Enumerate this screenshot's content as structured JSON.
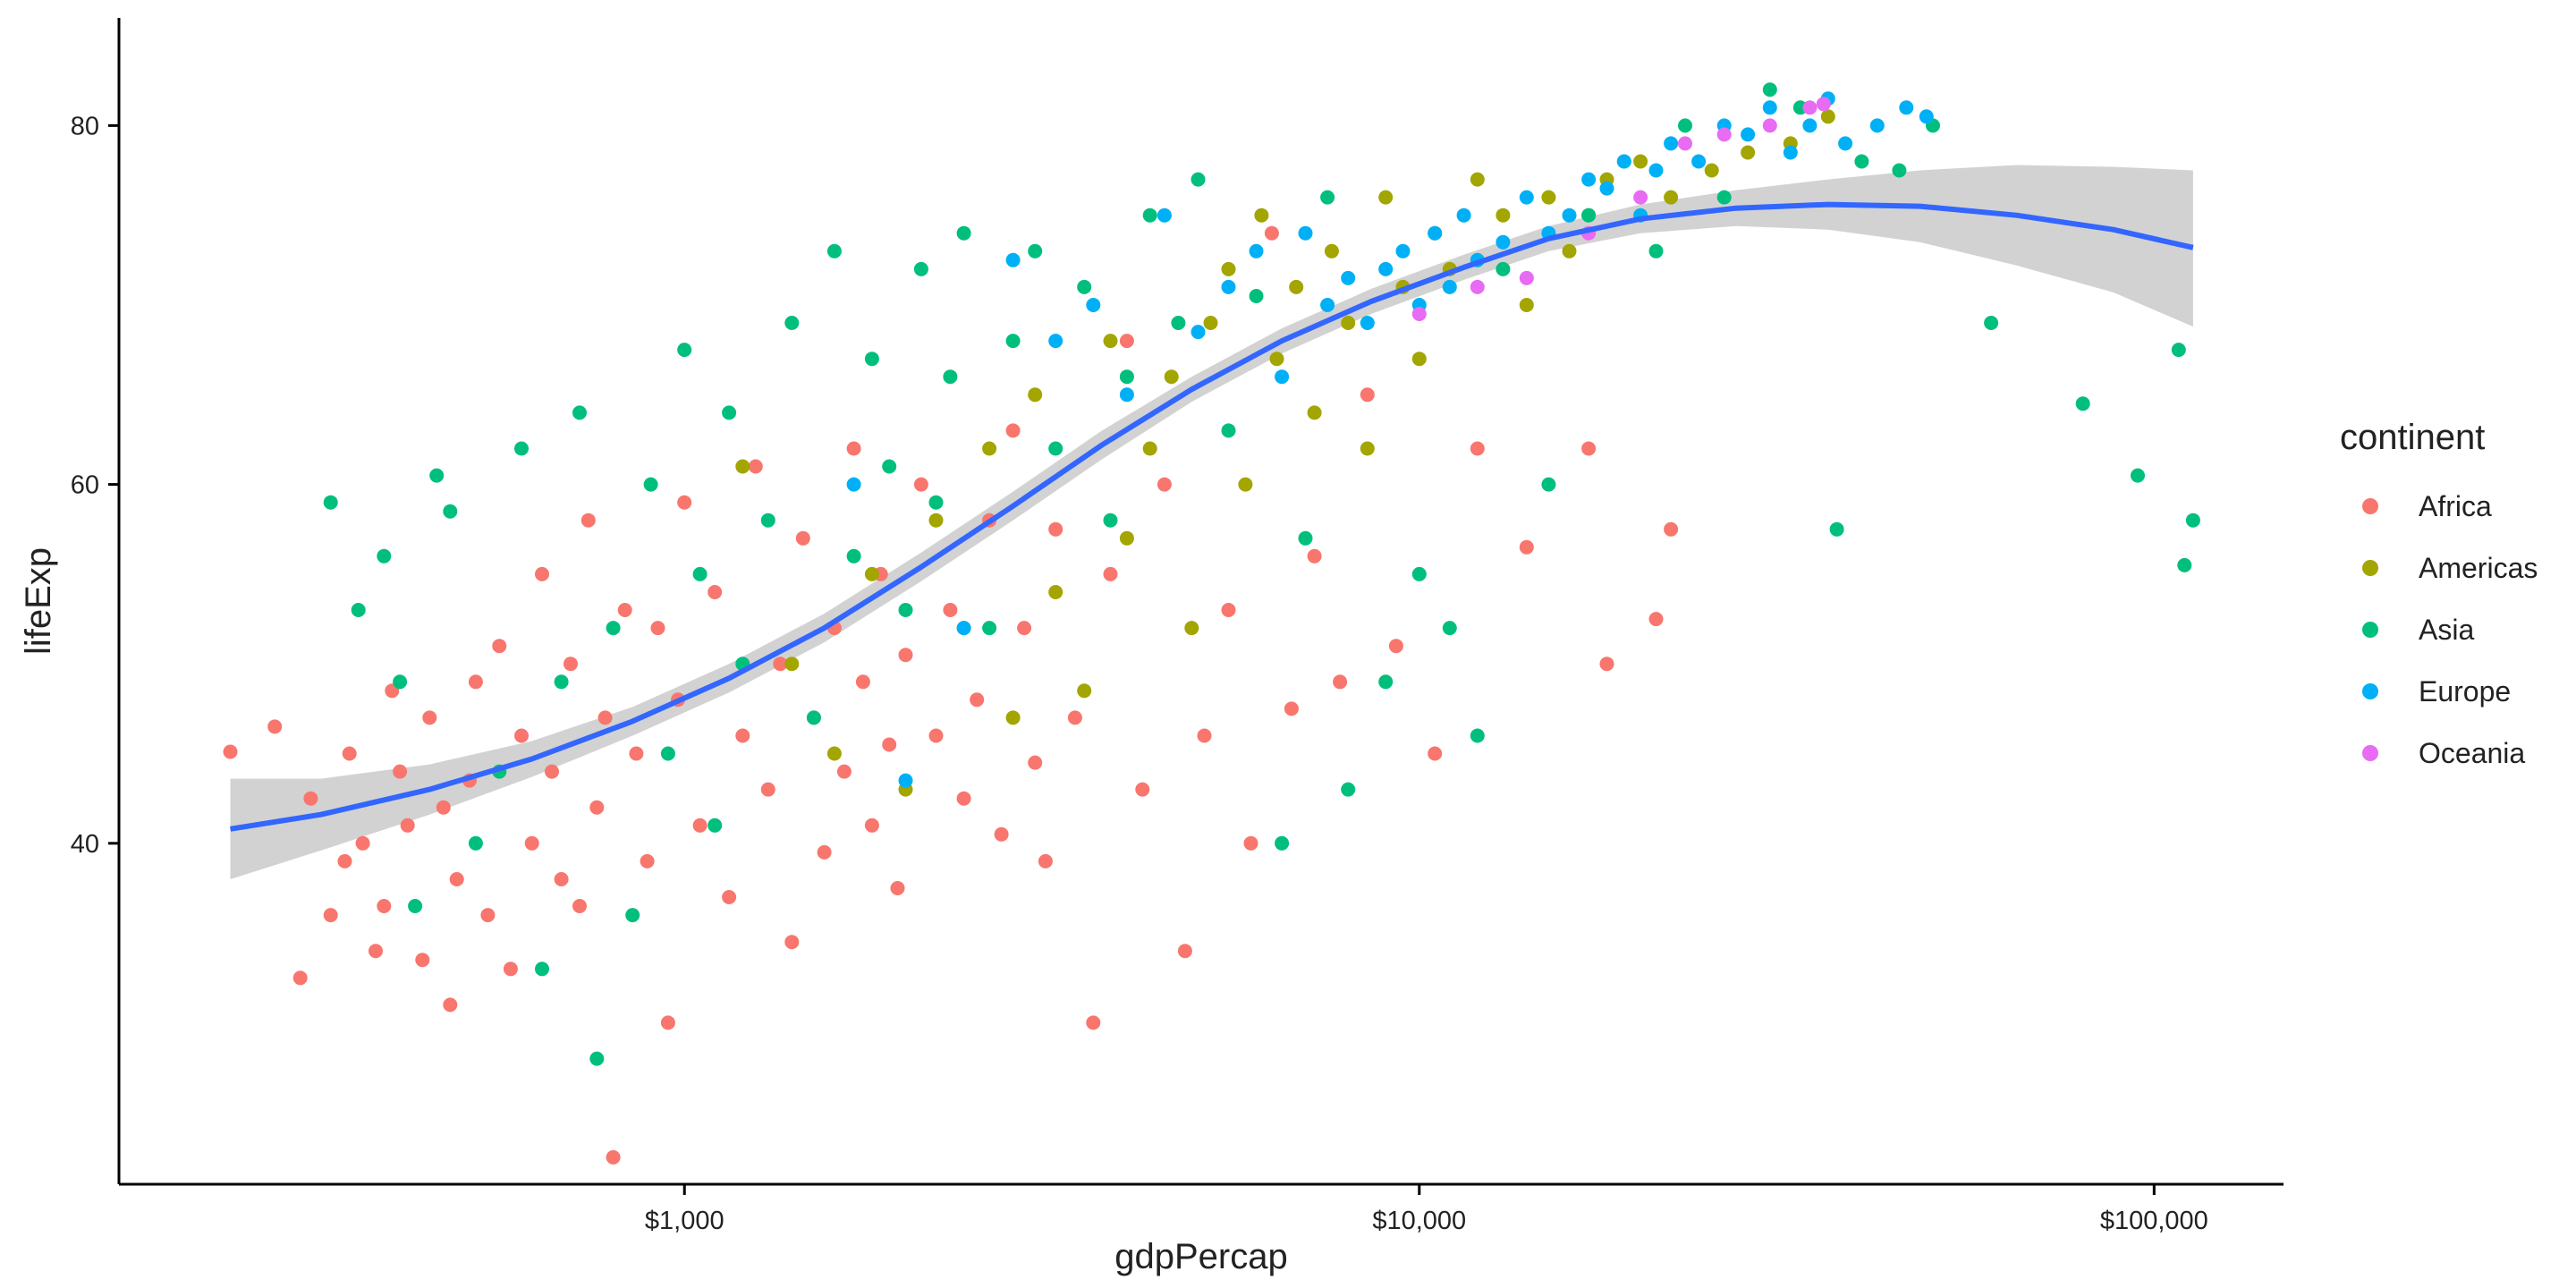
{
  "chart_data": {
    "type": "scatter",
    "xlabel": "gdpPercap",
    "ylabel": "lifeExp",
    "x_scale": "log10",
    "xlim": [
      170,
      150000
    ],
    "ylim": [
      21,
      86
    ],
    "x_ticks": [
      {
        "value": 1000,
        "label": "$1,000"
      },
      {
        "value": 10000,
        "label": "$10,000"
      },
      {
        "value": 100000,
        "label": "$100,000"
      }
    ],
    "y_ticks": [
      {
        "value": 40,
        "label": "40"
      },
      {
        "value": 60,
        "label": "60"
      },
      {
        "value": 80,
        "label": "80"
      }
    ],
    "grid": false,
    "legend": {
      "title": "continent",
      "position": "right"
    },
    "series": [
      {
        "name": "Africa",
        "color": "#F8766D",
        "points": [
          [
            241,
            45.1
          ],
          [
            277,
            46.5
          ],
          [
            300,
            32.5
          ],
          [
            310,
            42.5
          ],
          [
            330,
            36
          ],
          [
            345,
            39
          ],
          [
            350,
            45
          ],
          [
            365,
            40
          ],
          [
            380,
            34
          ],
          [
            390,
            36.5
          ],
          [
            400,
            48.5
          ],
          [
            410,
            44
          ],
          [
            420,
            41
          ],
          [
            440,
            33.5
          ],
          [
            450,
            47
          ],
          [
            470,
            42
          ],
          [
            480,
            31
          ],
          [
            490,
            38
          ],
          [
            510,
            43.5
          ],
          [
            520,
            49
          ],
          [
            540,
            36
          ],
          [
            560,
            51
          ],
          [
            580,
            33
          ],
          [
            600,
            46
          ],
          [
            620,
            40
          ],
          [
            640,
            55
          ],
          [
            660,
            44
          ],
          [
            680,
            38
          ],
          [
            700,
            50
          ],
          [
            720,
            36.5
          ],
          [
            740,
            58
          ],
          [
            760,
            42
          ],
          [
            780,
            47
          ],
          [
            800,
            22.5
          ],
          [
            830,
            53
          ],
          [
            860,
            45
          ],
          [
            890,
            39
          ],
          [
            920,
            52
          ],
          [
            950,
            30
          ],
          [
            980,
            48
          ],
          [
            1000,
            59
          ],
          [
            1050,
            41
          ],
          [
            1100,
            54
          ],
          [
            1150,
            37
          ],
          [
            1200,
            46
          ],
          [
            1250,
            61
          ],
          [
            1300,
            43
          ],
          [
            1350,
            50
          ],
          [
            1400,
            34.5
          ],
          [
            1450,
            57
          ],
          [
            1500,
            47
          ],
          [
            1550,
            39.5
          ],
          [
            1600,
            52
          ],
          [
            1650,
            44
          ],
          [
            1700,
            62
          ],
          [
            1750,
            49
          ],
          [
            1800,
            41
          ],
          [
            1850,
            55
          ],
          [
            1900,
            45.5
          ],
          [
            1950,
            37.5
          ],
          [
            2000,
            50.5
          ],
          [
            2100,
            60
          ],
          [
            2200,
            46
          ],
          [
            2300,
            53
          ],
          [
            2400,
            42.5
          ],
          [
            2500,
            48
          ],
          [
            2600,
            58
          ],
          [
            2700,
            40.5
          ],
          [
            2800,
            63
          ],
          [
            2900,
            52
          ],
          [
            3000,
            44.5
          ],
          [
            3100,
            39
          ],
          [
            3200,
            57.5
          ],
          [
            3400,
            47
          ],
          [
            3600,
            30
          ],
          [
            3800,
            55
          ],
          [
            4000,
            68
          ],
          [
            4200,
            43
          ],
          [
            4500,
            60
          ],
          [
            4800,
            34
          ],
          [
            5100,
            46
          ],
          [
            5500,
            53
          ],
          [
            5900,
            40
          ],
          [
            6300,
            74
          ],
          [
            6700,
            47.5
          ],
          [
            7200,
            56
          ],
          [
            7800,
            49
          ],
          [
            8500,
            65
          ],
          [
            9300,
            51
          ],
          [
            10500,
            45
          ],
          [
            12000,
            62
          ],
          [
            14000,
            56.5
          ],
          [
            17000,
            62
          ],
          [
            18000,
            50
          ],
          [
            21000,
            52.5
          ],
          [
            22000,
            57.5
          ]
        ]
      },
      {
        "name": "Americas",
        "color": "#A3A500",
        "points": [
          [
            1200,
            61
          ],
          [
            1400,
            50
          ],
          [
            1600,
            45
          ],
          [
            1800,
            55
          ],
          [
            2000,
            43
          ],
          [
            2200,
            58
          ],
          [
            2400,
            52
          ],
          [
            2600,
            62
          ],
          [
            2800,
            47
          ],
          [
            3000,
            65
          ],
          [
            3200,
            54
          ],
          [
            3500,
            48.5
          ],
          [
            3800,
            68
          ],
          [
            4000,
            57
          ],
          [
            4300,
            62
          ],
          [
            4600,
            66
          ],
          [
            4900,
            52
          ],
          [
            5200,
            69
          ],
          [
            5500,
            72
          ],
          [
            5800,
            60
          ],
          [
            6100,
            75
          ],
          [
            6400,
            67
          ],
          [
            6800,
            71
          ],
          [
            7200,
            64
          ],
          [
            7600,
            73
          ],
          [
            8000,
            69
          ],
          [
            8500,
            62
          ],
          [
            9000,
            76
          ],
          [
            9500,
            71
          ],
          [
            10000,
            67
          ],
          [
            10500,
            74
          ],
          [
            11000,
            72
          ],
          [
            12000,
            77
          ],
          [
            13000,
            75
          ],
          [
            14000,
            70
          ],
          [
            15000,
            76
          ],
          [
            16000,
            73
          ],
          [
            17000,
            75
          ],
          [
            18000,
            77
          ],
          [
            20000,
            78
          ],
          [
            22000,
            76
          ],
          [
            25000,
            77.5
          ],
          [
            28000,
            78.5
          ],
          [
            32000,
            79
          ],
          [
            36000,
            80.5
          ]
        ]
      },
      {
        "name": "Asia",
        "color": "#00BF7D",
        "points": [
          [
            330,
            59
          ],
          [
            360,
            53
          ],
          [
            390,
            56
          ],
          [
            410,
            49
          ],
          [
            430,
            36.5
          ],
          [
            460,
            60.5
          ],
          [
            480,
            58.5
          ],
          [
            520,
            40
          ],
          [
            560,
            44
          ],
          [
            600,
            62
          ],
          [
            640,
            33
          ],
          [
            680,
            49
          ],
          [
            720,
            64
          ],
          [
            760,
            28
          ],
          [
            800,
            52
          ],
          [
            850,
            36
          ],
          [
            900,
            60
          ],
          [
            950,
            45
          ],
          [
            1000,
            67.5
          ],
          [
            1050,
            55
          ],
          [
            1100,
            41
          ],
          [
            1150,
            64
          ],
          [
            1200,
            50
          ],
          [
            1300,
            58
          ],
          [
            1400,
            69
          ],
          [
            1500,
            47
          ],
          [
            1600,
            73
          ],
          [
            1700,
            56
          ],
          [
            1800,
            67
          ],
          [
            1900,
            61
          ],
          [
            2000,
            53
          ],
          [
            2100,
            72
          ],
          [
            2200,
            59
          ],
          [
            2300,
            66
          ],
          [
            2400,
            74
          ],
          [
            2600,
            52
          ],
          [
            2800,
            68
          ],
          [
            3000,
            73
          ],
          [
            3200,
            62
          ],
          [
            3500,
            71
          ],
          [
            3800,
            58
          ],
          [
            4000,
            66
          ],
          [
            4300,
            75
          ],
          [
            4700,
            69
          ],
          [
            5000,
            77
          ],
          [
            5500,
            63
          ],
          [
            6000,
            70.5
          ],
          [
            6500,
            40
          ],
          [
            7000,
            57
          ],
          [
            7500,
            76
          ],
          [
            8000,
            43
          ],
          [
            9000,
            49
          ],
          [
            10000,
            55
          ],
          [
            11000,
            52
          ],
          [
            12000,
            46
          ],
          [
            13000,
            72
          ],
          [
            15000,
            60
          ],
          [
            17000,
            75
          ],
          [
            19000,
            78
          ],
          [
            21000,
            73
          ],
          [
            23000,
            80
          ],
          [
            26000,
            76
          ],
          [
            30000,
            82
          ],
          [
            33000,
            81
          ],
          [
            37000,
            57.5
          ],
          [
            40000,
            78
          ],
          [
            45000,
            77.5
          ],
          [
            50000,
            80
          ],
          [
            60000,
            69
          ],
          [
            80000,
            64.5
          ],
          [
            95000,
            60.5
          ],
          [
            108000,
            67.5
          ],
          [
            110000,
            55.5
          ],
          [
            113000,
            58
          ]
        ]
      },
      {
        "name": "Europe",
        "color": "#00B0F6",
        "points": [
          [
            1700,
            60
          ],
          [
            2000,
            43.5
          ],
          [
            2400,
            52
          ],
          [
            2800,
            72.5
          ],
          [
            3200,
            68
          ],
          [
            3600,
            70
          ],
          [
            4000,
            65
          ],
          [
            4500,
            75
          ],
          [
            5000,
            68.5
          ],
          [
            5500,
            71
          ],
          [
            6000,
            73
          ],
          [
            6500,
            66
          ],
          [
            7000,
            74
          ],
          [
            7500,
            70
          ],
          [
            8000,
            71.5
          ],
          [
            8500,
            69
          ],
          [
            9000,
            72
          ],
          [
            9500,
            73
          ],
          [
            10000,
            70
          ],
          [
            10500,
            74
          ],
          [
            11000,
            71
          ],
          [
            11500,
            75
          ],
          [
            12000,
            72.5
          ],
          [
            13000,
            73.5
          ],
          [
            14000,
            76
          ],
          [
            15000,
            74
          ],
          [
            16000,
            75
          ],
          [
            17000,
            77
          ],
          [
            18000,
            76.5
          ],
          [
            19000,
            78
          ],
          [
            20000,
            75
          ],
          [
            21000,
            77.5
          ],
          [
            22000,
            79
          ],
          [
            24000,
            78
          ],
          [
            26000,
            80
          ],
          [
            28000,
            79.5
          ],
          [
            30000,
            81
          ],
          [
            32000,
            78.5
          ],
          [
            34000,
            80
          ],
          [
            36000,
            81.5
          ],
          [
            38000,
            79
          ],
          [
            42000,
            80
          ],
          [
            46000,
            81
          ],
          [
            49000,
            80.5
          ]
        ]
      },
      {
        "name": "Oceania",
        "color": "#E76BF3",
        "points": [
          [
            10000,
            69.5
          ],
          [
            12000,
            71
          ],
          [
            14000,
            71.5
          ],
          [
            17000,
            74
          ],
          [
            20000,
            76
          ],
          [
            23000,
            79
          ],
          [
            26000,
            79.5
          ],
          [
            30000,
            80
          ],
          [
            34000,
            81
          ],
          [
            35500,
            81.2
          ]
        ]
      }
    ],
    "smooth": {
      "method": "loess",
      "color": "#3366FF",
      "band_color": "#C7C7C7",
      "points": [
        {
          "x": 241,
          "y": 40.8,
          "lo": 38.0,
          "hi": 43.6
        },
        {
          "x": 320,
          "y": 41.6,
          "lo": 39.6,
          "hi": 43.6
        },
        {
          "x": 450,
          "y": 43.0,
          "lo": 41.6,
          "hi": 44.4
        },
        {
          "x": 620,
          "y": 44.7,
          "lo": 43.7,
          "hi": 45.7
        },
        {
          "x": 850,
          "y": 46.8,
          "lo": 46.0,
          "hi": 47.6
        },
        {
          "x": 1150,
          "y": 49.2,
          "lo": 48.4,
          "hi": 50.0
        },
        {
          "x": 1550,
          "y": 52.0,
          "lo": 51.2,
          "hi": 52.8
        },
        {
          "x": 2100,
          "y": 55.4,
          "lo": 54.6,
          "hi": 56.2
        },
        {
          "x": 2800,
          "y": 58.8,
          "lo": 58.0,
          "hi": 59.6
        },
        {
          "x": 3700,
          "y": 62.2,
          "lo": 61.4,
          "hi": 63.0
        },
        {
          "x": 4900,
          "y": 65.3,
          "lo": 64.6,
          "hi": 66.0
        },
        {
          "x": 6500,
          "y": 68.0,
          "lo": 67.3,
          "hi": 68.7
        },
        {
          "x": 8600,
          "y": 70.2,
          "lo": 69.5,
          "hi": 70.9
        },
        {
          "x": 11500,
          "y": 72.1,
          "lo": 71.4,
          "hi": 72.8
        },
        {
          "x": 15000,
          "y": 73.7,
          "lo": 73.0,
          "hi": 74.4
        },
        {
          "x": 20000,
          "y": 74.8,
          "lo": 74.0,
          "hi": 75.6
        },
        {
          "x": 27000,
          "y": 75.4,
          "lo": 74.4,
          "hi": 76.4
        },
        {
          "x": 36000,
          "y": 75.6,
          "lo": 74.2,
          "hi": 77.0
        },
        {
          "x": 48000,
          "y": 75.5,
          "lo": 73.5,
          "hi": 77.5
        },
        {
          "x": 65000,
          "y": 75.0,
          "lo": 72.2,
          "hi": 77.8
        },
        {
          "x": 88000,
          "y": 74.2,
          "lo": 70.7,
          "hi": 77.7
        },
        {
          "x": 113000,
          "y": 73.2,
          "lo": 68.8,
          "hi": 77.5
        }
      ]
    }
  }
}
